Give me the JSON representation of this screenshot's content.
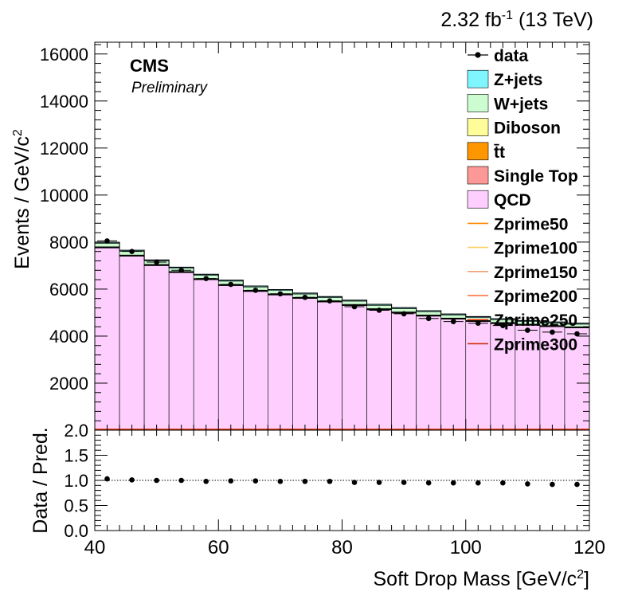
{
  "header": {
    "lumi": "2.32 fb",
    "lumi_exp": "-1",
    "energy": "(13 TeV)",
    "experiment": "CMS",
    "status": "Preliminary"
  },
  "colors": {
    "Z+jets": "#7ff5fd",
    "W+jets": "#cbfdd0",
    "Diboson": "#fffd9a",
    "ttbar": "#fe9600",
    "Single Top": "#fc9895",
    "QCD": "#fecffe",
    "Zprime50": "#ff8a00",
    "Zprime100": "#ffd060",
    "Zprime150": "#f0a070",
    "Zprime200": "#ff6a30",
    "Zprime250": "#ff4a20",
    "Zprime300": "#d03010"
  },
  "chart_data": [
    {
      "type": "bar",
      "stacked": true,
      "ylabel": "Events / GeV/c",
      "ylabel_exp": "2",
      "xlim": [
        40,
        120
      ],
      "ylim": [
        0,
        16500
      ],
      "yticks": [
        2000,
        4000,
        6000,
        8000,
        10000,
        12000,
        14000,
        16000
      ],
      "bin_edges": [
        40,
        44,
        48,
        52,
        56,
        60,
        64,
        68,
        72,
        76,
        80,
        84,
        88,
        92,
        96,
        100,
        104,
        108,
        112,
        116,
        120
      ],
      "legend_position": "top-right",
      "legend": [
        "data",
        "Z+jets",
        "W+jets",
        "Diboson",
        "t̄t",
        "Single Top",
        "QCD",
        "Zprime50",
        "Zprime100",
        "Zprime150",
        "Zprime200",
        "Zprime250",
        "Zprime300"
      ],
      "series": [
        {
          "name": "QCD",
          "values": [
            7750,
            7400,
            7000,
            6700,
            6400,
            6150,
            5900,
            5750,
            5600,
            5450,
            5300,
            5120,
            4980,
            4850,
            4720,
            4620,
            4530,
            4460,
            4400,
            4350
          ]
        },
        {
          "name": "Single Top",
          "values": [
            20,
            20,
            20,
            20,
            20,
            20,
            20,
            20,
            20,
            20,
            20,
            20,
            20,
            20,
            20,
            20,
            20,
            20,
            20,
            20
          ]
        },
        {
          "name": "t̄t",
          "values": [
            20,
            20,
            20,
            20,
            20,
            20,
            20,
            20,
            20,
            20,
            20,
            20,
            20,
            20,
            20,
            20,
            20,
            20,
            20,
            20
          ]
        },
        {
          "name": "Diboson",
          "values": [
            10,
            10,
            10,
            10,
            10,
            10,
            10,
            10,
            10,
            10,
            10,
            10,
            10,
            10,
            10,
            10,
            10,
            10,
            10,
            10
          ]
        },
        {
          "name": "W+jets",
          "values": [
            150,
            160,
            150,
            140,
            140,
            140,
            140,
            140,
            140,
            140,
            140,
            140,
            140,
            140,
            130,
            120,
            120,
            110,
            110,
            110
          ]
        },
        {
          "name": "Z+jets",
          "values": [
            40,
            40,
            40,
            40,
            40,
            40,
            40,
            40,
            40,
            40,
            40,
            40,
            40,
            40,
            40,
            40,
            40,
            40,
            40,
            40
          ]
        },
        {
          "name": "data",
          "values": [
            8050,
            7600,
            7150,
            6800,
            6450,
            6200,
            5950,
            5800,
            5650,
            5500,
            5250,
            5100,
            4950,
            4750,
            4620,
            4550,
            4450,
            4250,
            4170,
            4100
          ]
        }
      ],
      "signals": [
        {
          "name": "Zprime50",
          "values": [
            0
          ]
        },
        {
          "name": "Zprime100",
          "values": [
            0
          ]
        },
        {
          "name": "Zprime150",
          "values": [
            0
          ]
        },
        {
          "name": "Zprime200",
          "values": [
            0
          ]
        },
        {
          "name": "Zprime250",
          "values": [
            0
          ]
        },
        {
          "name": "Zprime300",
          "values": [
            0
          ]
        }
      ]
    },
    {
      "type": "scatter",
      "xlabel": "Soft Drop Mass [GeV/c",
      "xlabel_exp": "2",
      "xlabel_end": "]",
      "ylabel": "Data / Pred.",
      "xlim": [
        40,
        120
      ],
      "ylim": [
        0,
        2
      ],
      "xticks": [
        40,
        60,
        80,
        100,
        120
      ],
      "yticks": [
        0.0,
        0.5,
        1.0,
        1.5,
        2.0
      ],
      "yticklabels": [
        "0.0",
        "0.5",
        "1.0",
        "1.5",
        "2.0"
      ],
      "reference_line": 1.0,
      "x": [
        42,
        46,
        50,
        54,
        58,
        62,
        66,
        70,
        74,
        78,
        82,
        86,
        90,
        94,
        98,
        102,
        106,
        110,
        114,
        118
      ],
      "values": [
        1.03,
        1.01,
        1.0,
        1.0,
        0.98,
        0.99,
        0.99,
        0.98,
        0.98,
        0.98,
        0.96,
        0.96,
        0.96,
        0.95,
        0.95,
        0.95,
        0.95,
        0.93,
        0.92,
        0.92
      ]
    }
  ]
}
